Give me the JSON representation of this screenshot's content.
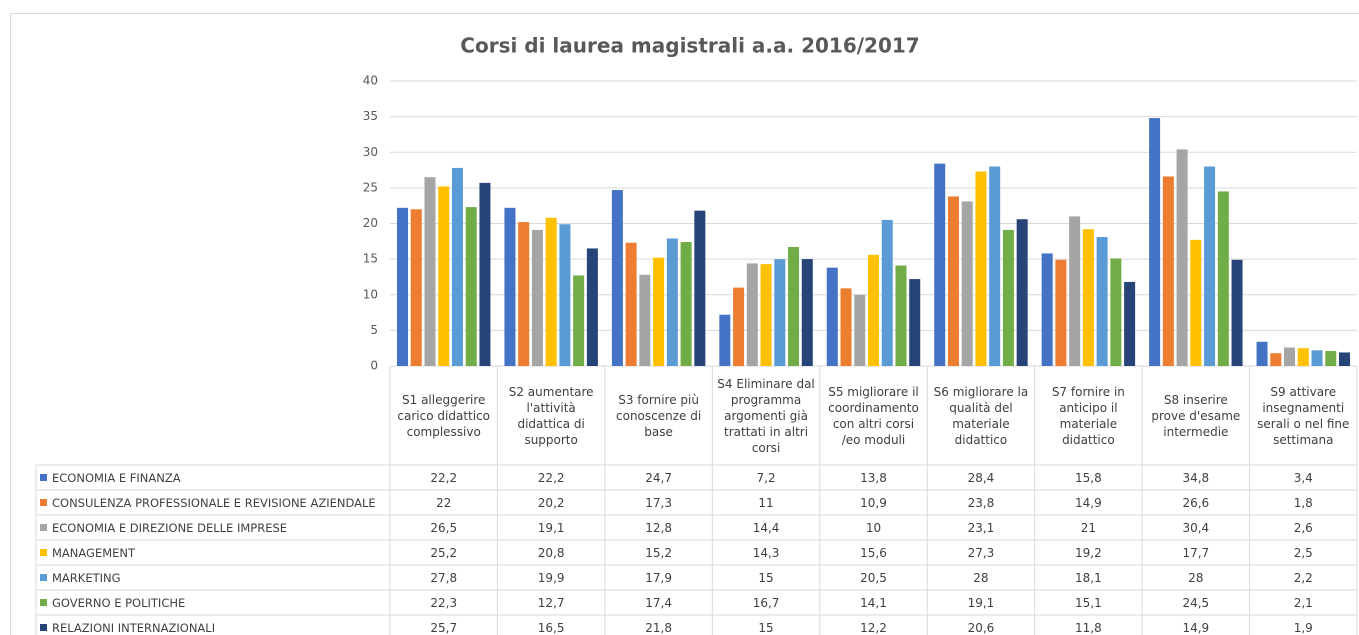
{
  "chart_data": {
    "type": "bar",
    "title": "Corsi di laurea magistrali a.a. 2016/2017",
    "categories": [
      "S1 alleggerire carico didattico complessivo",
      "S2 aumentare l'attività didattica di supporto",
      "S3 fornire più conoscenze di base",
      "S4 Eliminare dal programma argomenti già trattati in altri corsi",
      "S5 migliorare il coordinamento con altri corsi /eo moduli",
      "S6 migliorare la qualità del materiale didattico",
      "S7 fornire in anticipo il materiale didattico",
      "S8 inserire prove d'esame intermedie",
      "S9 attivare insegnamenti serali o nel fine settimana"
    ],
    "series": [
      {
        "name": "ECONOMIA E FINANZA",
        "color": "#4472c4",
        "values": [
          22.2,
          22.2,
          24.7,
          7.2,
          13.8,
          28.4,
          15.8,
          34.8,
          3.4
        ],
        "value_labels": [
          "22,2",
          "22,2",
          "24,7",
          "7,2",
          "13,8",
          "28,4",
          "15,8",
          "34,8",
          "3,4"
        ]
      },
      {
        "name": "CONSULENZA PROFESSIONALE E REVISIONE AZIENDALE",
        "color": "#ed7d31",
        "values": [
          22,
          20.2,
          17.3,
          11,
          10.9,
          23.8,
          14.9,
          26.6,
          1.8
        ],
        "value_labels": [
          "22",
          "20,2",
          "17,3",
          "11",
          "10,9",
          "23,8",
          "14,9",
          "26,6",
          "1,8"
        ]
      },
      {
        "name": "ECONOMIA E DIREZIONE DELLE IMPRESE",
        "color": "#a5a5a5",
        "values": [
          26.5,
          19.1,
          12.8,
          14.4,
          10,
          23.1,
          21,
          30.4,
          2.6
        ],
        "value_labels": [
          "26,5",
          "19,1",
          "12,8",
          "14,4",
          "10",
          "23,1",
          "21",
          "30,4",
          "2,6"
        ]
      },
      {
        "name": "MANAGEMENT",
        "color": "#ffc000",
        "values": [
          25.2,
          20.8,
          15.2,
          14.3,
          15.6,
          27.3,
          19.2,
          17.7,
          2.5
        ],
        "value_labels": [
          "25,2",
          "20,8",
          "15,2",
          "14,3",
          "15,6",
          "27,3",
          "19,2",
          "17,7",
          "2,5"
        ]
      },
      {
        "name": "MARKETING",
        "color": "#5b9bd5",
        "values": [
          27.8,
          19.9,
          17.9,
          15,
          20.5,
          28,
          18.1,
          28,
          2.2
        ],
        "value_labels": [
          "27,8",
          "19,9",
          "17,9",
          "15",
          "20,5",
          "28",
          "18,1",
          "28",
          "2,2"
        ]
      },
      {
        "name": "GOVERNO E POLITICHE",
        "color": "#70ad47",
        "values": [
          22.3,
          12.7,
          17.4,
          16.7,
          14.1,
          19.1,
          15.1,
          24.5,
          2.1
        ],
        "value_labels": [
          "22,3",
          "12,7",
          "17,4",
          "16,7",
          "14,1",
          "19,1",
          "15,1",
          "24,5",
          "2,1"
        ]
      },
      {
        "name": "RELAZIONI INTERNAZIONALI",
        "color": "#264478",
        "values": [
          25.7,
          16.5,
          21.8,
          15,
          12.2,
          20.6,
          11.8,
          14.9,
          1.9
        ],
        "value_labels": [
          "25,7",
          "16,5",
          "21,8",
          "15",
          "12,2",
          "20,6",
          "11,8",
          "14,9",
          "1,9"
        ]
      }
    ],
    "ylim": [
      0,
      40
    ],
    "yticks": [
      0,
      5,
      10,
      15,
      20,
      25,
      30,
      35,
      40
    ],
    "grid": true
  }
}
